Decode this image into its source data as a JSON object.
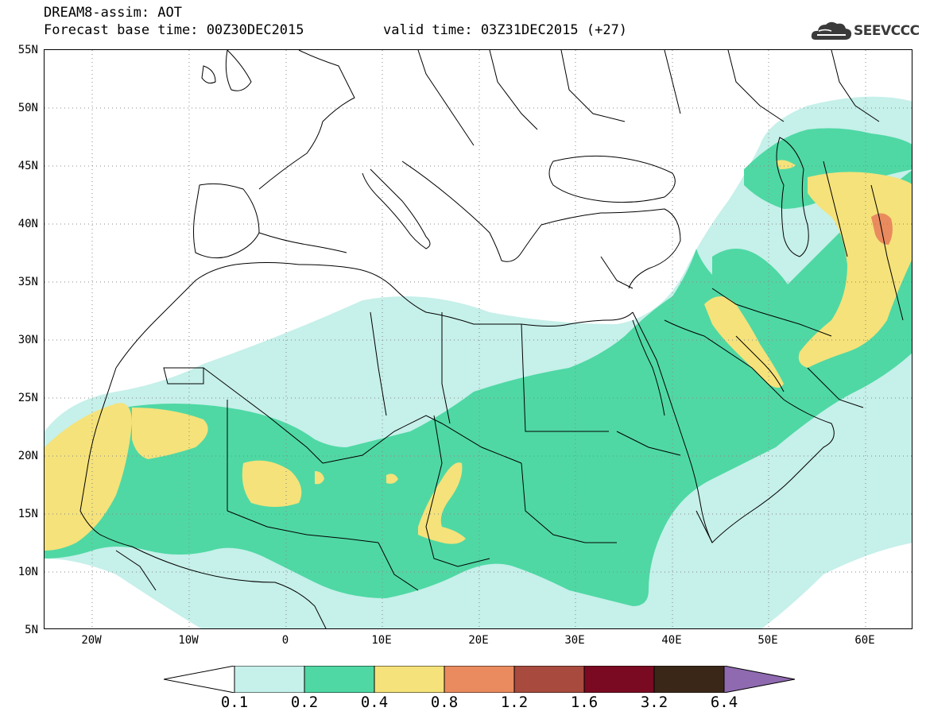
{
  "title": {
    "line1": "DREAM8-assim: AOT",
    "line2": "Forecast base time: 00Z30DEC2015",
    "valid": "valid time: 03Z31DEC2015 (+27)"
  },
  "logo": {
    "text": "SEEVCCC",
    "icon": "cloud-icon"
  },
  "map": {
    "variable": "Aerosol optical thickness (dust)",
    "lon_range": [
      -25,
      65
    ],
    "lat_range": [
      5,
      55
    ],
    "grid": "dotted",
    "lat_labels": [
      "55N",
      "50N",
      "45N",
      "40N",
      "35N",
      "30N",
      "25N",
      "20N",
      "15N",
      "10N",
      "5N"
    ],
    "lon_labels": [
      "20W",
      "10W",
      "0",
      "10E",
      "20E",
      "30E",
      "40E",
      "50E",
      "60E"
    ]
  },
  "colorbar": {
    "labels": [
      "0.1",
      "0.2",
      "0.4",
      "0.8",
      "1.2",
      "1.6",
      "3.2",
      "6.4"
    ],
    "colors": [
      "#c6f0ea",
      "#4fd8a4",
      "#f5e27a",
      "#e98b5e",
      "#a84a3e",
      "#7a0a22",
      "#3a2718",
      "#8f6ab0"
    ],
    "under_color": "#ffffff"
  }
}
